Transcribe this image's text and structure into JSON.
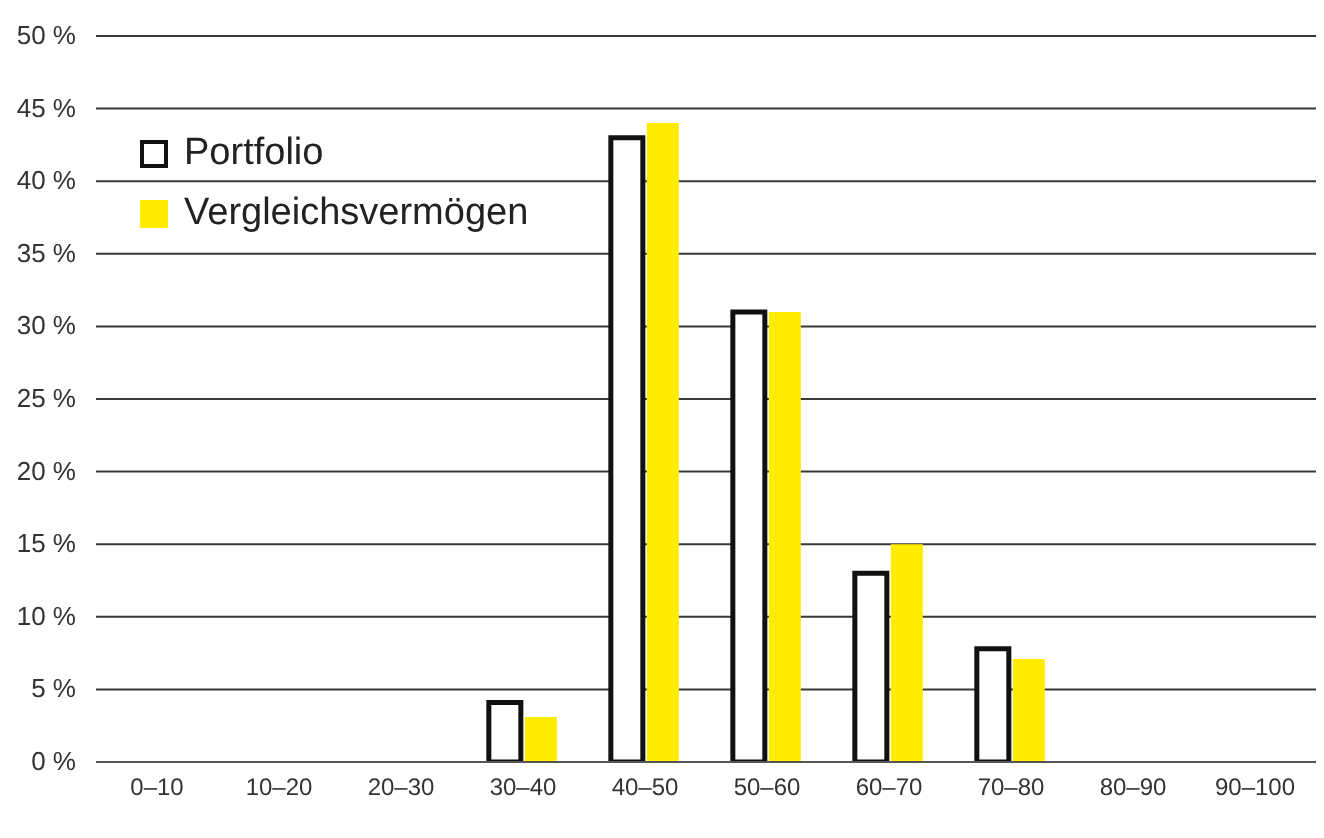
{
  "chart_data": {
    "type": "bar",
    "categories": [
      "0–10",
      "10–20",
      "20–30",
      "30–40",
      "40–50",
      "50–60",
      "60–70",
      "70–80",
      "80–90",
      "90–100"
    ],
    "series": [
      {
        "name": "Portfolio",
        "color": "#ffffff",
        "values": [
          0,
          0,
          0,
          4.1,
          43,
          31,
          13,
          7.8,
          0,
          0
        ]
      },
      {
        "name": "Vergleichsvermögen",
        "color": "#ffec00",
        "values": [
          0,
          0,
          0,
          3.1,
          44,
          31,
          15,
          7.1,
          0,
          0
        ]
      }
    ],
    "ylim": [
      0,
      50
    ],
    "yticks": [
      {
        "value": 0,
        "label": "0 %"
      },
      {
        "value": 5,
        "label": "5 %"
      },
      {
        "value": 10,
        "label": "10 %"
      },
      {
        "value": 15,
        "label": "15 %"
      },
      {
        "value": 20,
        "label": "20 %"
      },
      {
        "value": 25,
        "label": "25 %"
      },
      {
        "value": 30,
        "label": "30 %"
      },
      {
        "value": 35,
        "label": "35 %"
      },
      {
        "value": 40,
        "label": "40 %"
      },
      {
        "value": 45,
        "label": "45 %"
      },
      {
        "value": 50,
        "label": "50 %"
      }
    ],
    "grid": "y",
    "legend": "top left"
  }
}
